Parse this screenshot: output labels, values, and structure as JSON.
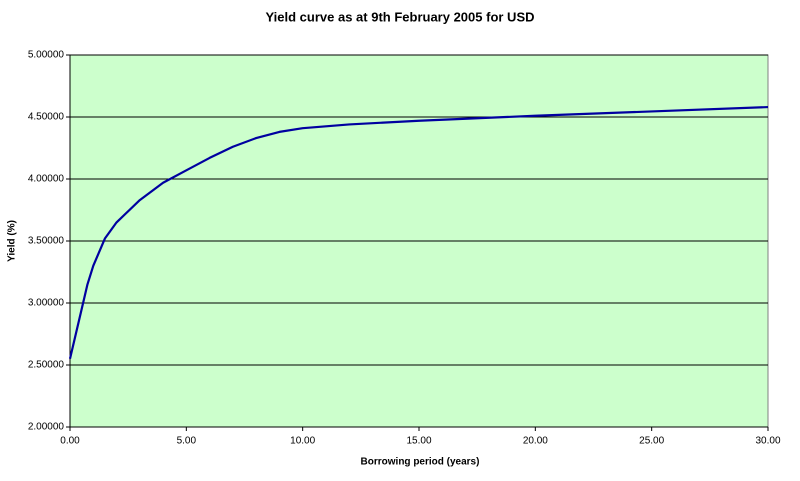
{
  "chart_data": {
    "type": "line",
    "title": "Yield curve as at 9th February 2005 for USD",
    "x_label": "Borrowing period (years)",
    "y_label": "Yield (%)",
    "x": [
      0,
      0.25,
      0.5,
      0.75,
      1,
      1.5,
      2,
      3,
      4,
      5,
      6,
      7,
      8,
      9,
      10,
      12,
      15,
      20,
      25,
      30
    ],
    "series": [
      {
        "color": "#0000a0",
        "values": [
          2.55,
          2.75,
          2.95,
          3.15,
          3.3,
          3.52,
          3.65,
          3.83,
          3.97,
          4.07,
          4.17,
          4.26,
          4.33,
          4.38,
          4.41,
          4.44,
          4.47,
          4.51,
          4.545,
          4.58
        ]
      }
    ],
    "xlim": [
      0,
      30
    ],
    "xticks": [
      {
        "value": 0,
        "label": "0.00"
      },
      {
        "value": 5,
        "label": "5.00"
      },
      {
        "value": 10,
        "label": "10.00"
      },
      {
        "value": 15,
        "label": "15.00"
      },
      {
        "value": 20,
        "label": "20.00"
      },
      {
        "value": 25,
        "label": "25.00"
      },
      {
        "value": 30,
        "label": "30.00"
      }
    ],
    "ylim": [
      2,
      5
    ],
    "yticks": [
      {
        "value": 2,
        "label": "2.00000"
      },
      {
        "value": 2.5,
        "label": "2.50000"
      },
      {
        "value": 3,
        "label": "3.00000"
      },
      {
        "value": 3.5,
        "label": "3.50000"
      },
      {
        "value": 4,
        "label": "4.00000"
      },
      {
        "value": 4.5,
        "label": "4.50000"
      },
      {
        "value": 5,
        "label": "5.00000"
      }
    ],
    "grid": true,
    "plot_background": "#ccffcc"
  }
}
